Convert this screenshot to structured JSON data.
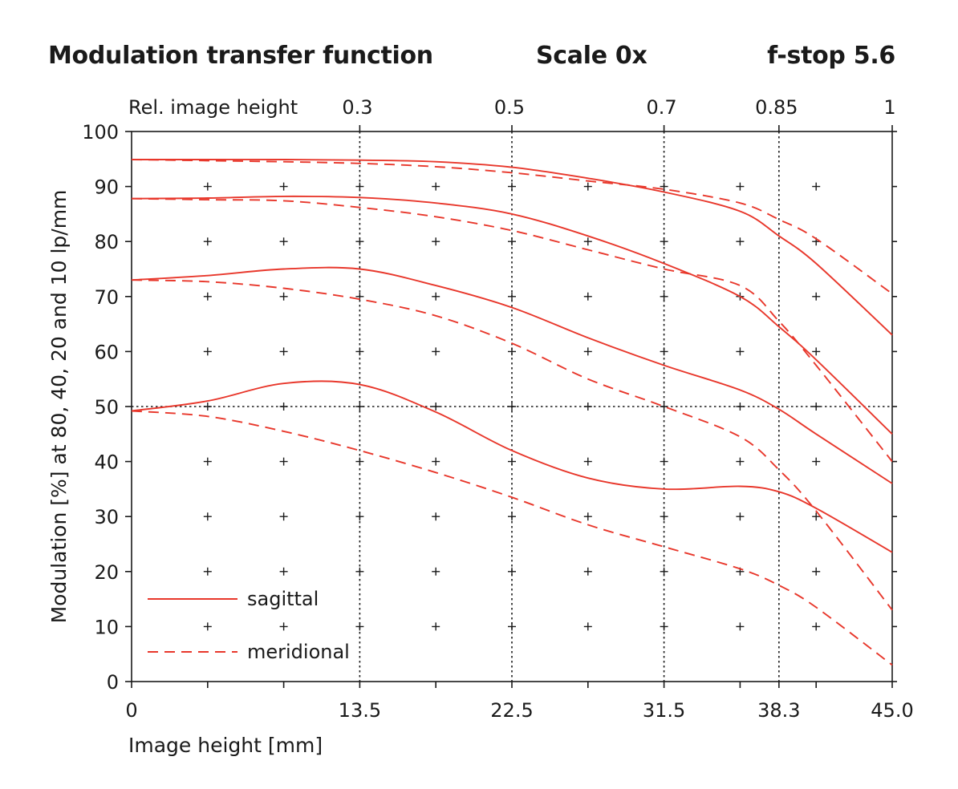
{
  "header": {
    "title": "Modulation transfer function",
    "scale": "Scale 0x",
    "fstop": "f-stop 5.6"
  },
  "chart_data": {
    "type": "line",
    "title": "Modulation transfer function",
    "xlabel": "Image height [mm]",
    "ylabel": "Modulation [%] at 80, 40, 20 and 10 lp/mm",
    "top_axis_label": "Rel. image height",
    "xlim": [
      0,
      45
    ],
    "ylim": [
      0,
      100
    ],
    "x_tick_labels": [
      {
        "x": 0,
        "label": "0"
      },
      {
        "x": 13.5,
        "label": "13.5"
      },
      {
        "x": 22.5,
        "label": "22.5"
      },
      {
        "x": 31.5,
        "label": "31.5"
      },
      {
        "x": 38.3,
        "label": "38.3"
      },
      {
        "x": 45,
        "label": "45.0"
      }
    ],
    "x_minor_ticks": [
      4.5,
      9,
      18,
      27,
      36,
      40.5
    ],
    "y_ticks": [
      0,
      10,
      20,
      30,
      40,
      50,
      60,
      70,
      80,
      90,
      100
    ],
    "top_ticks": [
      {
        "x": 13.5,
        "label": "0.3"
      },
      {
        "x": 22.5,
        "label": "0.5"
      },
      {
        "x": 31.5,
        "label": "0.7"
      },
      {
        "x": 38.3,
        "label": "0.85"
      },
      {
        "x": 45,
        "label": "1"
      }
    ],
    "reference_lines": {
      "vertical": [
        13.5,
        22.5,
        31.5,
        38.3
      ],
      "horizontal": [
        50
      ]
    },
    "grid_marks": {
      "x": [
        4.5,
        9,
        13.5,
        18,
        22.5,
        27,
        31.5,
        36,
        40.5
      ],
      "y": [
        10,
        20,
        30,
        40,
        50,
        60,
        70,
        80,
        90
      ]
    },
    "legend": {
      "position": "bottom-left",
      "entries": [
        "sagittal",
        "meridional"
      ]
    },
    "colors": {
      "line": "#e8372b"
    },
    "x": [
      0,
      4.5,
      9,
      13.5,
      18,
      22.5,
      27,
      31.5,
      36,
      38.3,
      40.5,
      45
    ],
    "series": [
      {
        "group": "10 lp/mm",
        "style": "sagittal",
        "values": [
          94.9,
          94.9,
          94.9,
          94.8,
          94.5,
          93.5,
          91.5,
          89.0,
          85.5,
          81.0,
          76.0,
          63.0
        ]
      },
      {
        "group": "10 lp/mm",
        "style": "meridional",
        "values": [
          94.9,
          94.7,
          94.5,
          94.2,
          93.6,
          92.5,
          91.0,
          89.5,
          87.0,
          84.0,
          80.5,
          70.5
        ]
      },
      {
        "group": "20 lp/mm",
        "style": "sagittal",
        "values": [
          87.8,
          87.9,
          88.2,
          88.0,
          87.0,
          85.0,
          81.0,
          76.0,
          70.0,
          64.5,
          58.5,
          45.0
        ]
      },
      {
        "group": "20 lp/mm",
        "style": "meridional",
        "values": [
          87.8,
          87.6,
          87.4,
          86.2,
          84.5,
          82.0,
          78.5,
          75.0,
          72.0,
          65.5,
          57.5,
          40.0
        ]
      },
      {
        "group": "40 lp/mm",
        "style": "sagittal",
        "values": [
          73.0,
          73.8,
          75.0,
          75.0,
          72.0,
          68.0,
          62.5,
          57.5,
          53.0,
          49.5,
          45.0,
          36.0
        ]
      },
      {
        "group": "40 lp/mm",
        "style": "meridional",
        "values": [
          73.0,
          72.7,
          71.5,
          69.5,
          66.5,
          61.5,
          55.0,
          50.0,
          44.5,
          38.5,
          31.0,
          13.0
        ]
      },
      {
        "group": "80 lp/mm",
        "style": "sagittal",
        "values": [
          49.2,
          51.0,
          54.2,
          54.0,
          49.0,
          42.0,
          37.0,
          35.0,
          35.5,
          34.5,
          31.5,
          23.5
        ]
      },
      {
        "group": "80 lp/mm",
        "style": "meridional",
        "values": [
          49.2,
          48.2,
          45.5,
          42.0,
          38.0,
          33.5,
          28.5,
          24.5,
          20.5,
          17.5,
          13.5,
          3.0
        ]
      }
    ]
  }
}
